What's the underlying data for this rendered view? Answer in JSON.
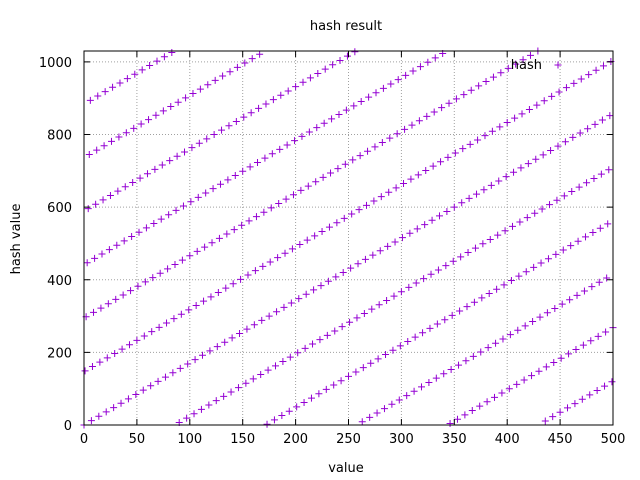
{
  "chart_data": {
    "type": "scatter",
    "title": "hash result",
    "xlabel": "value",
    "ylabel": "hash value",
    "xlim": [
      0,
      500
    ],
    "ylim": [
      0,
      1030
    ],
    "xticks": [
      0,
      50,
      100,
      150,
      200,
      250,
      300,
      350,
      400,
      450,
      500
    ],
    "yticks": [
      0,
      200,
      400,
      600,
      800,
      1000
    ],
    "grid": true,
    "legend_position": "top-right",
    "marker": "plus",
    "series": [
      {
        "name": "hash",
        "color": "#9400d3",
        "x_start": 0,
        "x_end": 500,
        "x_step": 1,
        "formula": "y = (x * 149) mod 1031",
        "multiplier": 149,
        "modulus": 1031
      }
    ]
  }
}
